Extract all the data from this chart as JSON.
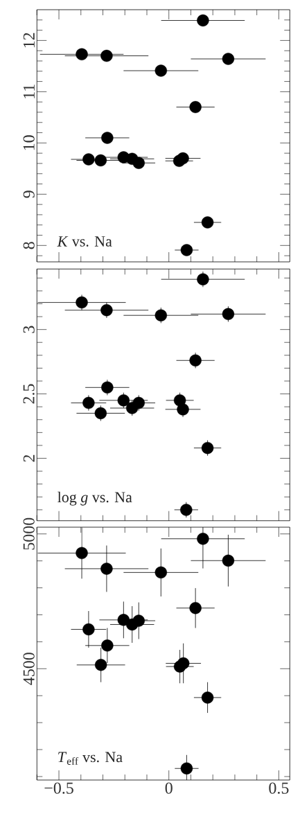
{
  "chart_data": [
    {
      "type": "scatter",
      "color": "#000000",
      "marker": "circle",
      "tick_labels": "y",
      "annotations": [
        "*K* vs. Na"
      ],
      "x": [
        0.155,
        -0.396,
        -0.283,
        0.27,
        -0.036,
        0.121,
        -0.28,
        -0.365,
        -0.31,
        -0.206,
        -0.167,
        -0.137,
        0.047,
        0.064,
        0.176,
        0.081
      ],
      "values": [
        12.39,
        11.73,
        11.7,
        11.64,
        11.41,
        10.7,
        10.1,
        9.68,
        9.66,
        9.72,
        9.69,
        9.61,
        9.65,
        9.7,
        8.45,
        7.91
      ],
      "xerrors": [
        0.19,
        0.19,
        0.19,
        0.17,
        0.17,
        0.087,
        0.1,
        0.08,
        0.11,
        0.11,
        0.1,
        0.075,
        0.063,
        0.08,
        0.062,
        0.054
      ],
      "xlim": [
        -0.6,
        0.55
      ],
      "ylim": [
        7.68,
        12.6
      ],
      "xticks": [
        {
          "value": -0.6,
          "label": null
        },
        -0.5,
        {
          "value": -0.4,
          "label": null
        },
        {
          "value": -0.3,
          "label": null
        },
        {
          "value": -0.2,
          "label": null
        },
        {
          "value": -0.1,
          "label": null
        },
        0,
        {
          "value": 0.1,
          "label": null
        },
        {
          "value": 0.2,
          "label": null
        },
        {
          "value": 0.3,
          "label": null
        },
        {
          "value": 0.4,
          "label": null
        },
        0.5
      ],
      "yticks": [
        {
          "value": 7.8,
          "label": null
        },
        8,
        {
          "value": 8.2,
          "label": null
        },
        {
          "value": 8.4,
          "label": null
        },
        {
          "value": 8.6,
          "label": null
        },
        {
          "value": 8.8,
          "label": null
        },
        9,
        {
          "value": 9.2,
          "label": null
        },
        {
          "value": 9.4,
          "label": null
        },
        {
          "value": 9.6,
          "label": null
        },
        {
          "value": 9.8,
          "label": null
        },
        10,
        {
          "value": 10.2,
          "label": null
        },
        {
          "value": 10.4,
          "label": null
        },
        {
          "value": 10.6,
          "label": null
        },
        {
          "value": 10.8,
          "label": null
        },
        11,
        {
          "value": 11.2,
          "label": null
        },
        {
          "value": 11.4,
          "label": null
        },
        {
          "value": 11.6,
          "label": null
        },
        {
          "value": 11.8,
          "label": null
        },
        12,
        {
          "value": 12.2,
          "label": null
        },
        {
          "value": 12.4,
          "label": null
        }
      ]
    },
    {
      "type": "scatter",
      "color": "#000000",
      "marker": "circle",
      "tick_labels": "y",
      "annotations": [
        "log *g* vs. Na"
      ],
      "x": [
        0.155,
        -0.396,
        -0.283,
        -0.036,
        0.27,
        0.121,
        -0.28,
        -0.365,
        -0.31,
        -0.206,
        -0.167,
        -0.137,
        0.05,
        0.064,
        0.176,
        0.079
      ],
      "values": [
        3.39,
        3.21,
        3.15,
        3.11,
        3.12,
        2.76,
        2.55,
        2.43,
        2.35,
        2.45,
        2.39,
        2.43,
        2.45,
        2.38,
        2.08,
        1.6
      ],
      "xerrors": [
        0.19,
        0.2,
        0.19,
        0.17,
        0.17,
        0.087,
        0.1,
        0.08,
        0.11,
        0.11,
        0.1,
        0.075,
        0.063,
        0.08,
        0.062,
        0.054
      ],
      "errors": [
        0.06,
        0.06,
        0.06,
        0.06,
        0.06,
        0.06,
        0.06,
        0.06,
        0.06,
        0.06,
        0.06,
        0.06,
        0.06,
        0.06,
        0.06,
        0.06
      ],
      "xlim": [
        -0.6,
        0.55
      ],
      "ylim": [
        1.515,
        3.47
      ],
      "xticks": [
        {
          "value": -0.6,
          "label": null
        },
        -0.5,
        {
          "value": -0.4,
          "label": null
        },
        {
          "value": -0.3,
          "label": null
        },
        {
          "value": -0.2,
          "label": null
        },
        {
          "value": -0.1,
          "label": null
        },
        0,
        {
          "value": 0.1,
          "label": null
        },
        {
          "value": 0.2,
          "label": null
        },
        {
          "value": 0.3,
          "label": null
        },
        {
          "value": 0.4,
          "label": null
        },
        0.5
      ],
      "yticks": [
        {
          "value": 1.6,
          "label": null
        },
        {
          "value": 1.7,
          "label": null
        },
        {
          "value": 1.8,
          "label": null
        },
        {
          "value": 1.9,
          "label": null
        },
        2,
        {
          "value": 2.1,
          "label": null
        },
        {
          "value": 2.2,
          "label": null
        },
        {
          "value": 2.3,
          "label": null
        },
        {
          "value": 2.4,
          "label": null
        },
        2.5,
        {
          "value": 2.6,
          "label": null
        },
        {
          "value": 2.7,
          "label": null
        },
        {
          "value": 2.8,
          "label": null
        },
        {
          "value": 2.9,
          "label": null
        },
        3,
        {
          "value": 3.1,
          "label": null
        },
        {
          "value": 3.2,
          "label": null
        },
        {
          "value": 3.3,
          "label": null
        },
        {
          "value": 3.4,
          "label": null
        }
      ]
    },
    {
      "type": "scatter",
      "color": "#000000",
      "marker": "circle",
      "annotations": [
        "*T*$_{eff}$ vs. Na"
      ],
      "x": [
        0.155,
        -0.396,
        -0.283,
        -0.036,
        0.27,
        0.121,
        -0.365,
        -0.28,
        -0.309,
        -0.206,
        -0.167,
        -0.137,
        0.05,
        0.066,
        0.176,
        0.081
      ],
      "values": [
        4982,
        4929,
        4871,
        4857,
        4901,
        4725,
        4646,
        4586,
        4514,
        4681,
        4664,
        4678,
        4508,
        4520,
        4393,
        4130
      ],
      "xerrors": [
        0.19,
        0.2,
        0.19,
        0.17,
        0.17,
        0.087,
        0.08,
        0.1,
        0.11,
        0.11,
        0.1,
        0.075,
        0.063,
        0.08,
        0.062,
        0.054
      ],
      "errors": [
        110,
        95,
        86,
        89,
        96,
        74,
        68,
        65,
        64,
        68,
        68,
        68,
        62,
        74,
        57,
        50
      ],
      "xlim": [
        -0.6,
        0.55
      ],
      "ylim": [
        4087,
        5025
      ],
      "xticks": [
        {
          "value": -0.6,
          "label": null
        },
        {
          "value": -0.5,
          "label": "−0.5"
        },
        {
          "value": -0.4,
          "label": null
        },
        {
          "value": -0.3,
          "label": null
        },
        {
          "value": -0.2,
          "label": null
        },
        {
          "value": -0.1,
          "label": null
        },
        0,
        {
          "value": 0.1,
          "label": null
        },
        {
          "value": 0.2,
          "label": null
        },
        {
          "value": 0.3,
          "label": null
        },
        {
          "value": 0.4,
          "label": null
        },
        0.5
      ],
      "yticks": [
        {
          "value": 4100,
          "label": null
        },
        {
          "value": 4200,
          "label": null
        },
        {
          "value": 4300,
          "label": null
        },
        {
          "value": 4400,
          "label": null
        },
        4500,
        {
          "value": 4600,
          "label": null
        },
        {
          "value": 4700,
          "label": null
        },
        {
          "value": 4800,
          "label": null
        },
        {
          "value": 4900,
          "label": null
        },
        5000
      ]
    }
  ]
}
